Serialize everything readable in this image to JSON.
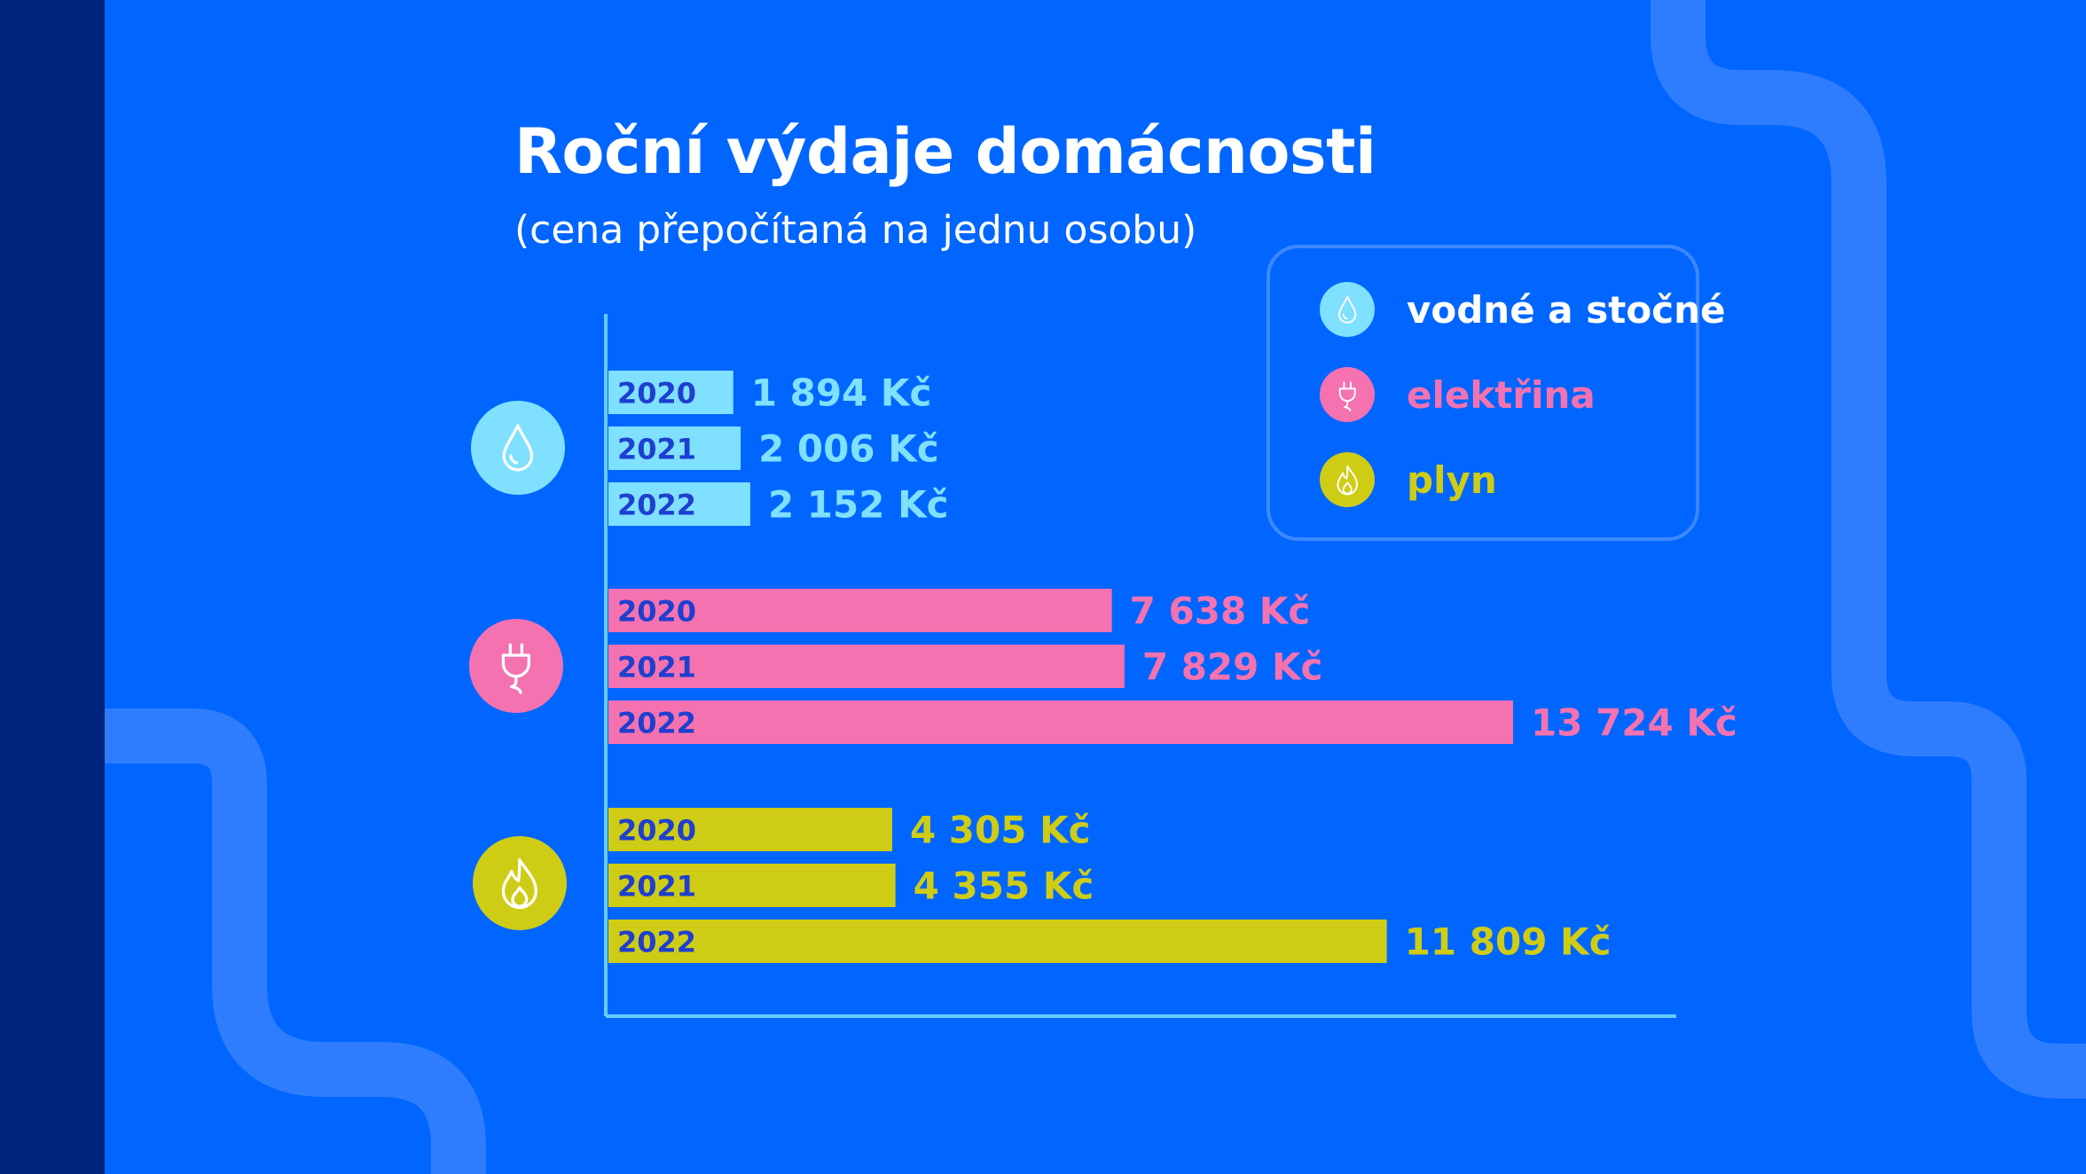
{
  "title": "Roční výdaje domácnosti",
  "subtitle": "(cena přepočítaná na jednu osobu)",
  "legend": [
    {
      "label": "vodné a stočné",
      "color": "#7fe0ff",
      "label_color": "#ffffff",
      "icon": "water-drop-icon"
    },
    {
      "label": "elektřina",
      "color": "#f472b0",
      "label_color": "#f472b0",
      "icon": "plug-icon"
    },
    {
      "label": "plyn",
      "color": "#cfcc16",
      "label_color": "#cfcc16",
      "icon": "flame-icon"
    }
  ],
  "chart_data": {
    "type": "bar",
    "orientation": "horizontal",
    "title": "Roční výdaje domácnosti",
    "subtitle": "(cena přepočítaná na jednu osobu)",
    "unit": "Kč",
    "groups": [
      {
        "name": "vodné a stočné",
        "color": "#7fe0ff",
        "icon": "water-drop-icon",
        "bars": [
          {
            "year": "2020",
            "value": 1894,
            "label": "1 894 Kč"
          },
          {
            "year": "2021",
            "value": 2006,
            "label": "2 006 Kč"
          },
          {
            "year": "2022",
            "value": 2152,
            "label": "2 152 Kč"
          }
        ]
      },
      {
        "name": "elektřina",
        "color": "#f472b0",
        "icon": "plug-icon",
        "bars": [
          {
            "year": "2020",
            "value": 7638,
            "label": "7 638 Kč"
          },
          {
            "year": "2021",
            "value": 7829,
            "label": "7 829 Kč"
          },
          {
            "year": "2022",
            "value": 13724,
            "label": "13 724 Kč"
          }
        ]
      },
      {
        "name": "plyn",
        "color": "#cfcc16",
        "icon": "flame-icon",
        "bars": [
          {
            "year": "2020",
            "value": 4305,
            "label": "4 305 Kč"
          },
          {
            "year": "2021",
            "value": 4355,
            "label": "4 355 Kč"
          },
          {
            "year": "2022",
            "value": 11809,
            "label": "11 809 Kč"
          }
        ]
      }
    ],
    "grid": false,
    "legend_position": "top-right"
  },
  "colors": {
    "background": "#0066ff",
    "sidebar": "#00247d",
    "decor": "#2f7dff",
    "axis": "#66ccff",
    "year_text": "#1e3fd0"
  }
}
